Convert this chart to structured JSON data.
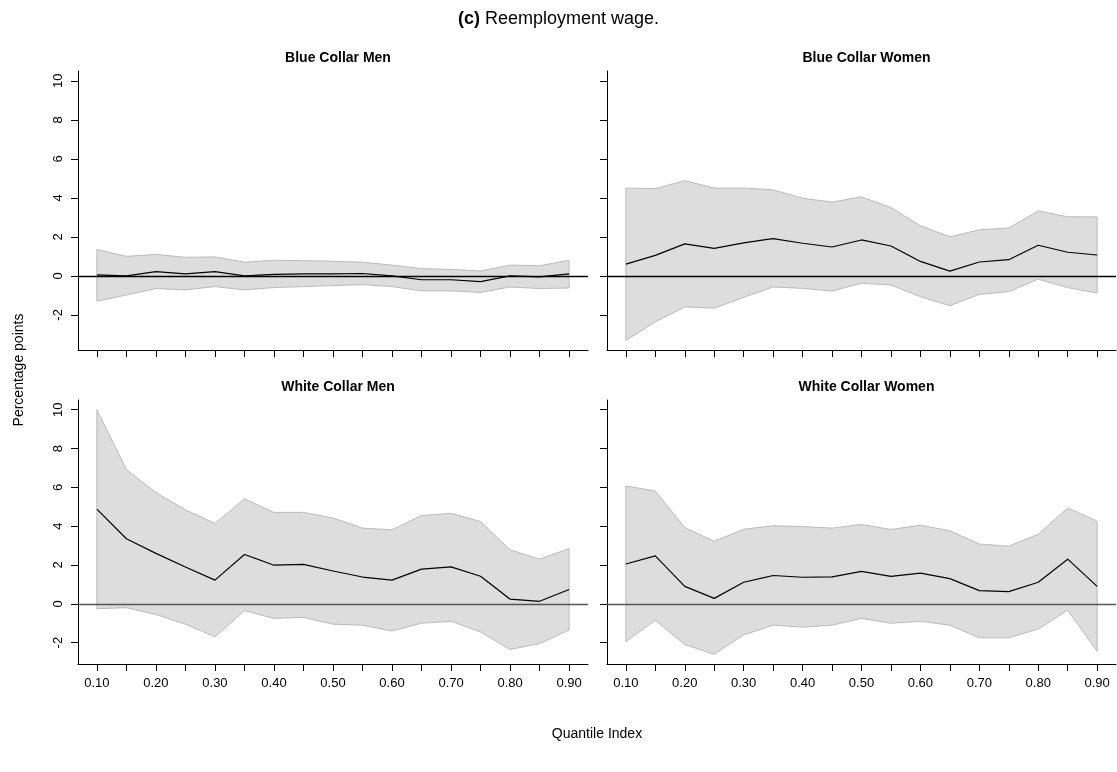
{
  "chart_data": [
    {
      "type": "line",
      "title": "Blue Collar Men",
      "annotations": [
        "(c) Reemployment wage."
      ],
      "ylabel": "Percentage points",
      "x": [
        0.1,
        0.15,
        0.2,
        0.25,
        0.3,
        0.35,
        0.4,
        0.45,
        0.5,
        0.55,
        0.6,
        0.65,
        0.7,
        0.75,
        0.8,
        0.85,
        0.9
      ],
      "series": [
        {
          "color": "#000000",
          "values": [
            0.05,
            0,
            0.22,
            0.1,
            0.22,
            0,
            0.08,
            0.1,
            0.1,
            0.12,
            0,
            -0.2,
            -0.2,
            -0.3,
            0,
            -0.05,
            0.1
          ],
          "lower": [
            -1.3,
            -0.98,
            -0.65,
            -0.72,
            -0.55,
            -0.72,
            -0.6,
            -0.55,
            -0.5,
            -0.45,
            -0.55,
            -0.77,
            -0.77,
            -0.85,
            -0.57,
            -0.65,
            -0.62
          ],
          "upper": [
            1.35,
            1.0,
            1.1,
            0.95,
            0.97,
            0.7,
            0.8,
            0.78,
            0.75,
            0.7,
            0.55,
            0.37,
            0.33,
            0.25,
            0.55,
            0.52,
            0.8
          ]
        }
      ],
      "xlim": [
        0.068,
        0.932
      ],
      "xticks": [
        {
          "value": 0.1,
          "label": null
        },
        {
          "value": 0.15,
          "label": null
        },
        {
          "value": 0.2,
          "label": null
        },
        {
          "value": 0.25,
          "label": null
        },
        {
          "value": 0.3,
          "label": null
        },
        {
          "value": 0.35,
          "label": null
        },
        {
          "value": 0.4,
          "label": null
        },
        {
          "value": 0.45,
          "label": null
        },
        {
          "value": 0.5,
          "label": null
        },
        {
          "value": 0.55,
          "label": null
        },
        {
          "value": 0.6,
          "label": null
        },
        {
          "value": 0.65,
          "label": null
        },
        {
          "value": 0.7,
          "label": null
        },
        {
          "value": 0.75,
          "label": null
        },
        {
          "value": 0.8,
          "label": null
        },
        {
          "value": 0.85,
          "label": null
        },
        {
          "value": 0.9,
          "label": null
        }
      ],
      "ylim": [
        -3.8,
        10.5
      ],
      "yticks": [
        -2,
        0,
        2,
        4,
        6,
        8,
        10
      ],
      "tick_labels": "y",
      "grid": false,
      "marker": "none",
      "ref_lines": [
        {
          "axis": "y",
          "value": 0,
          "color": "#000000"
        }
      ]
    },
    {
      "type": "line",
      "title": "Blue Collar Women",
      "x": [
        0.1,
        0.15,
        0.2,
        0.25,
        0.3,
        0.35,
        0.4,
        0.45,
        0.5,
        0.55,
        0.6,
        0.65,
        0.7,
        0.75,
        0.8,
        0.85,
        0.9
      ],
      "series": [
        {
          "color": "#000000",
          "values": [
            0.6,
            1.05,
            1.64,
            1.41,
            1.69,
            1.91,
            1.67,
            1.48,
            1.84,
            1.53,
            0.74,
            0.24,
            0.71,
            0.83,
            1.57,
            1.21,
            1.07
          ],
          "lower": [
            -3.31,
            -2.36,
            -1.59,
            -1.66,
            -1.1,
            -0.57,
            -0.64,
            -0.78,
            -0.38,
            -0.47,
            -1.07,
            -1.53,
            -0.95,
            -0.81,
            -0.17,
            -0.6,
            -0.88
          ],
          "upper": [
            4.5,
            4.47,
            4.88,
            4.5,
            4.5,
            4.41,
            3.98,
            3.78,
            4.05,
            3.5,
            2.57,
            2.0,
            2.36,
            2.45,
            3.33,
            3.03,
            3.02
          ]
        }
      ],
      "xlim": [
        0.068,
        0.932
      ],
      "xticks": [
        {
          "value": 0.1,
          "label": null
        },
        {
          "value": 0.15,
          "label": null
        },
        {
          "value": 0.2,
          "label": null
        },
        {
          "value": 0.25,
          "label": null
        },
        {
          "value": 0.3,
          "label": null
        },
        {
          "value": 0.35,
          "label": null
        },
        {
          "value": 0.4,
          "label": null
        },
        {
          "value": 0.45,
          "label": null
        },
        {
          "value": 0.5,
          "label": null
        },
        {
          "value": 0.55,
          "label": null
        },
        {
          "value": 0.6,
          "label": null
        },
        {
          "value": 0.65,
          "label": null
        },
        {
          "value": 0.7,
          "label": null
        },
        {
          "value": 0.75,
          "label": null
        },
        {
          "value": 0.8,
          "label": null
        },
        {
          "value": 0.85,
          "label": null
        },
        {
          "value": 0.9,
          "label": null
        }
      ],
      "ylim": [
        -3.8,
        10.5
      ],
      "yticks": [
        {
          "value": -2,
          "label": null
        },
        {
          "value": 0,
          "label": null
        },
        {
          "value": 2,
          "label": null
        },
        {
          "value": 4,
          "label": null
        },
        {
          "value": 6,
          "label": null
        },
        {
          "value": 8,
          "label": null
        },
        {
          "value": 10,
          "label": null
        }
      ],
      "tick_labels": false,
      "grid": false,
      "marker": "none",
      "ref_lines": [
        {
          "axis": "y",
          "value": 0,
          "color": "#000000"
        }
      ]
    },
    {
      "type": "line",
      "title": "White Collar Men",
      "xlabel": "Quantile Index",
      "x": [
        0.1,
        0.15,
        0.2,
        0.25,
        0.3,
        0.35,
        0.4,
        0.45,
        0.5,
        0.55,
        0.6,
        0.65,
        0.7,
        0.75,
        0.8,
        0.85,
        0.9
      ],
      "series": [
        {
          "color": "#000000",
          "values": [
            4.88,
            3.35,
            2.6,
            1.9,
            1.22,
            2.54,
            1.99,
            2.03,
            1.69,
            1.38,
            1.22,
            1.79,
            1.9,
            1.42,
            0.24,
            0.13,
            0.74
          ],
          "lower": [
            -0.25,
            -0.2,
            -0.55,
            -1.05,
            -1.7,
            -0.35,
            -0.75,
            -0.7,
            -1.05,
            -1.1,
            -1.4,
            -1.0,
            -0.9,
            -1.45,
            -2.35,
            -2.05,
            -1.35
          ],
          "upper": [
            10,
            6.92,
            5.73,
            4.84,
            4.14,
            5.41,
            4.71,
            4.71,
            4.42,
            3.9,
            3.81,
            4.55,
            4.66,
            4.24,
            2.78,
            2.3,
            2.85
          ]
        }
      ],
      "xlim": [
        0.068,
        0.932
      ],
      "xticks": [
        {
          "value": 0.1,
          "label": "0.10"
        },
        {
          "value": 0.15,
          "label": null
        },
        {
          "value": 0.2,
          "label": "0.20"
        },
        {
          "value": 0.25,
          "label": null
        },
        {
          "value": 0.3,
          "label": "0.30"
        },
        {
          "value": 0.35,
          "label": null
        },
        {
          "value": 0.4,
          "label": "0.40"
        },
        {
          "value": 0.45,
          "label": null
        },
        {
          "value": 0.5,
          "label": "0.50"
        },
        {
          "value": 0.55,
          "label": null
        },
        {
          "value": 0.6,
          "label": "0.60"
        },
        {
          "value": 0.65,
          "label": null
        },
        {
          "value": 0.7,
          "label": "0.70"
        },
        {
          "value": 0.75,
          "label": null
        },
        {
          "value": 0.8,
          "label": "0.80"
        },
        {
          "value": 0.85,
          "label": null
        },
        {
          "value": 0.9,
          "label": "0.90"
        }
      ],
      "ylim": [
        -3.1,
        10.5
      ],
      "yticks": [
        -2,
        0,
        2,
        4,
        6,
        8,
        10
      ],
      "grid": false,
      "marker": "none",
      "ref_lines": [
        {
          "axis": "y",
          "value": 0,
          "color": "#555555"
        }
      ]
    },
    {
      "type": "line",
      "title": "White Collar Women",
      "x": [
        0.1,
        0.15,
        0.2,
        0.25,
        0.3,
        0.35,
        0.4,
        0.45,
        0.5,
        0.55,
        0.6,
        0.65,
        0.7,
        0.75,
        0.8,
        0.85,
        0.9
      ],
      "series": [
        {
          "color": "#000000",
          "values": [
            2.05,
            2.47,
            0.9,
            0.28,
            1.11,
            1.46,
            1.37,
            1.39,
            1.67,
            1.41,
            1.58,
            1.3,
            0.68,
            0.63,
            1.11,
            2.3,
            0.9
          ],
          "lower": [
            -1.95,
            -0.85,
            -2.1,
            -2.6,
            -1.6,
            -1.1,
            -1.2,
            -1.1,
            -0.75,
            -1.0,
            -0.9,
            -1.1,
            -1.75,
            -1.75,
            -1.3,
            -0.33,
            -2.45
          ],
          "upper": [
            6.07,
            5.81,
            3.93,
            3.22,
            3.84,
            4.02,
            3.98,
            3.9,
            4.09,
            3.83,
            4.05,
            3.76,
            3.08,
            2.97,
            3.58,
            4.94,
            4.26
          ]
        }
      ],
      "xlim": [
        0.068,
        0.932
      ],
      "xticks": [
        {
          "value": 0.1,
          "label": "0.10"
        },
        {
          "value": 0.15,
          "label": null
        },
        {
          "value": 0.2,
          "label": "0.20"
        },
        {
          "value": 0.25,
          "label": null
        },
        {
          "value": 0.3,
          "label": "0.30"
        },
        {
          "value": 0.35,
          "label": null
        },
        {
          "value": 0.4,
          "label": "0.40"
        },
        {
          "value": 0.45,
          "label": null
        },
        {
          "value": 0.5,
          "label": "0.50"
        },
        {
          "value": 0.55,
          "label": null
        },
        {
          "value": 0.6,
          "label": "0.60"
        },
        {
          "value": 0.65,
          "label": null
        },
        {
          "value": 0.7,
          "label": "0.70"
        },
        {
          "value": 0.75,
          "label": null
        },
        {
          "value": 0.8,
          "label": "0.80"
        },
        {
          "value": 0.85,
          "label": null
        },
        {
          "value": 0.9,
          "label": "0.90"
        }
      ],
      "ylim": [
        -3.1,
        10.5
      ],
      "yticks": [
        {
          "value": -2,
          "label": null
        },
        {
          "value": 0,
          "label": null
        },
        {
          "value": 2,
          "label": null
        },
        {
          "value": 4,
          "label": null
        },
        {
          "value": 6,
          "label": null
        },
        {
          "value": 8,
          "label": null
        },
        {
          "value": 10,
          "label": null
        }
      ],
      "tick_labels": "x",
      "grid": false,
      "marker": "none",
      "ref_lines": [
        {
          "axis": "y",
          "value": 0,
          "color": "#555555"
        }
      ]
    }
  ]
}
